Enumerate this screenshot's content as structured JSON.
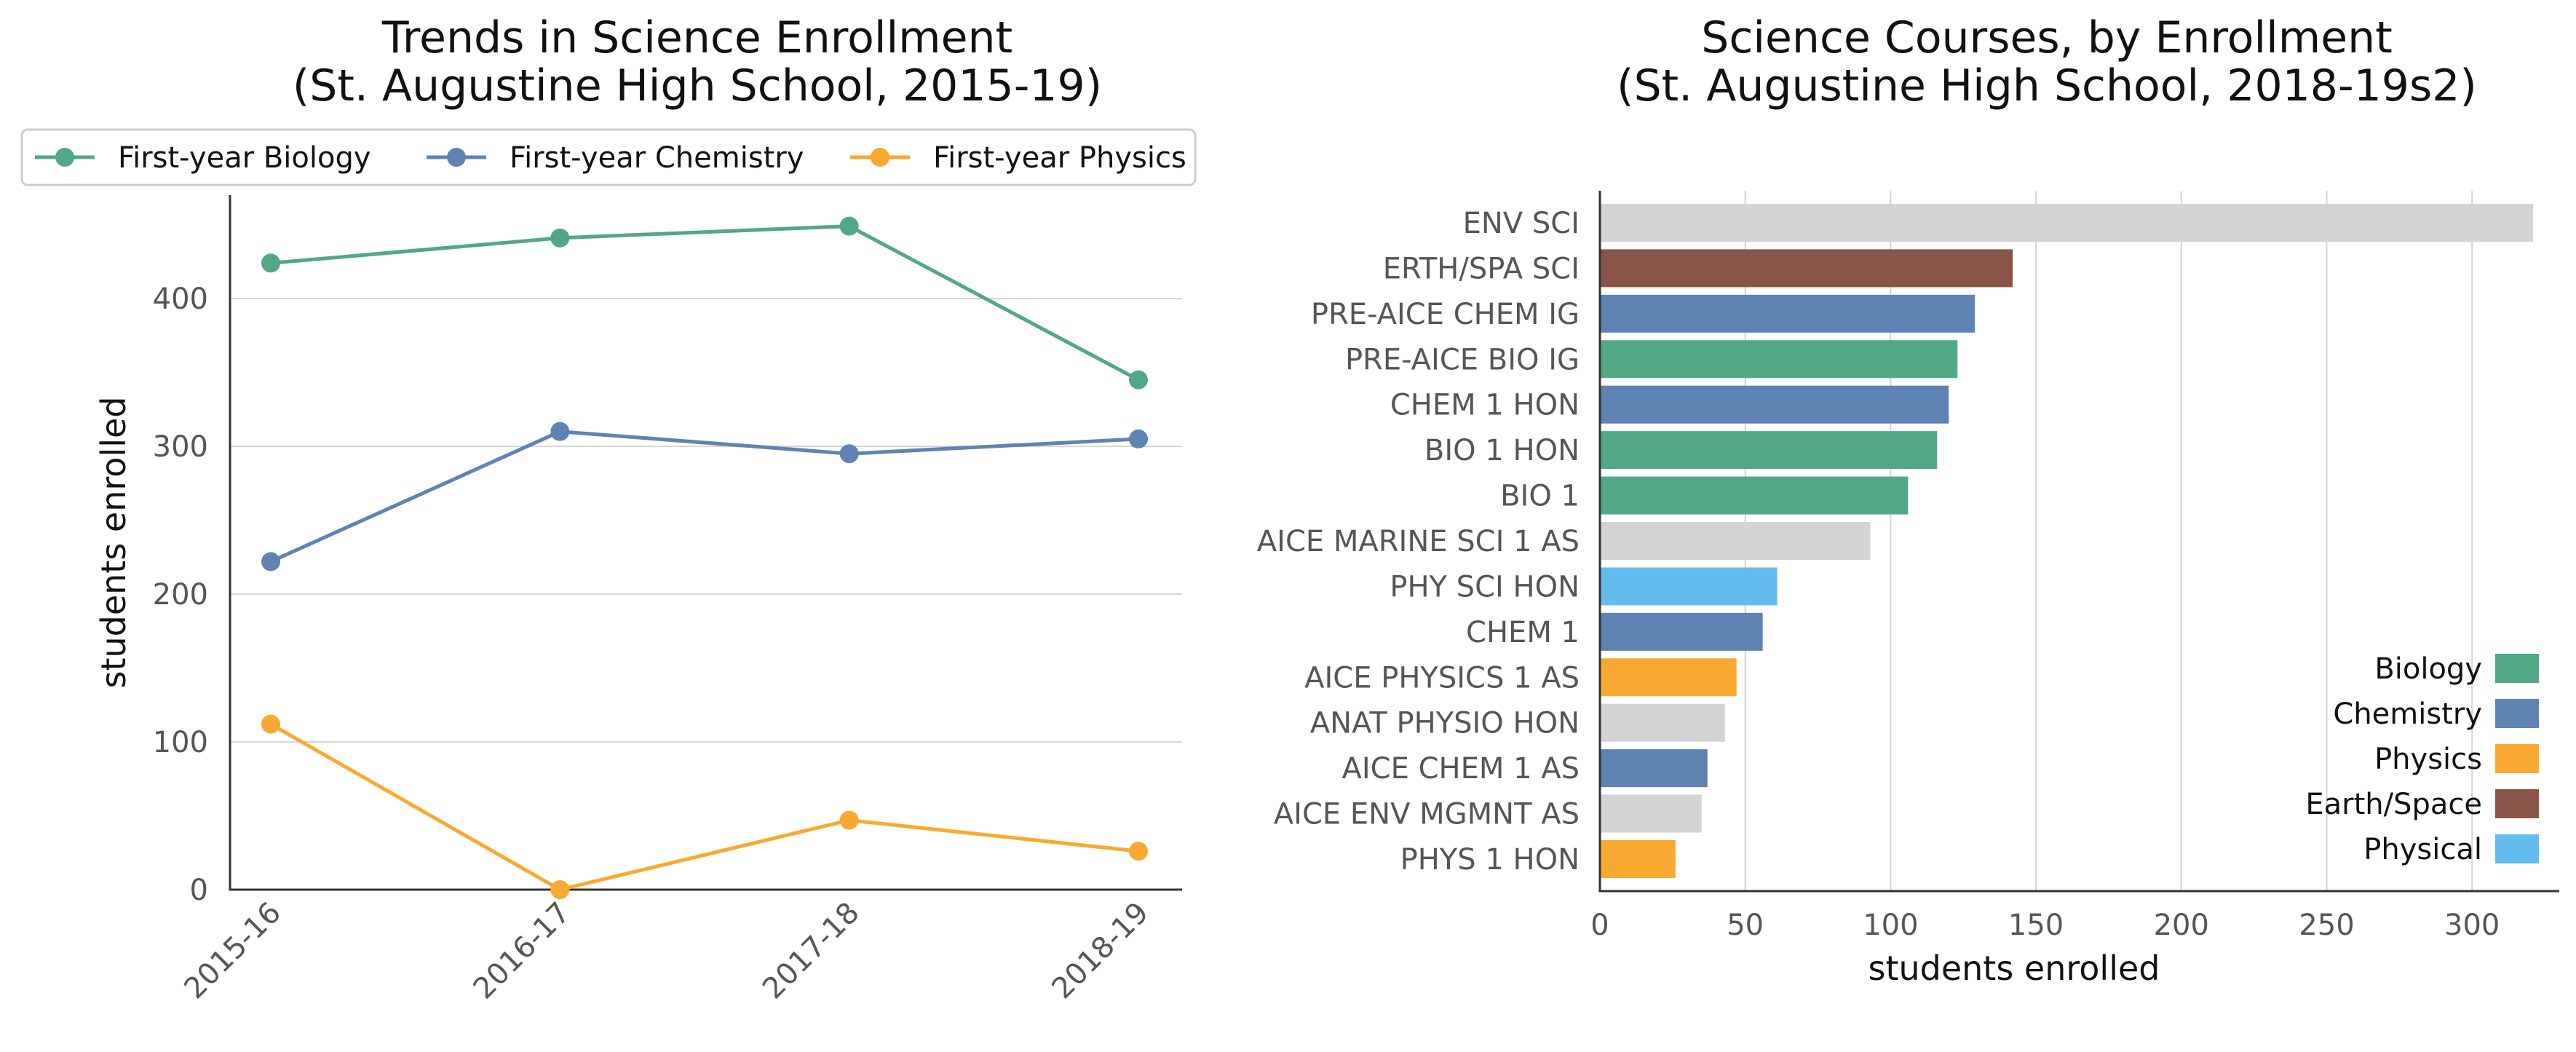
{
  "chart_data": [
    {
      "type": "line",
      "title": "Trends in Science Enrollment",
      "subtitle": "(St. Augustine High School, 2015-19)",
      "xlabel": "",
      "ylabel": "students enrolled",
      "categories": [
        "2015-16",
        "2016-17",
        "2017-18",
        "2018-19"
      ],
      "ylim": [
        0,
        470
      ],
      "yticks": [
        0,
        100,
        200,
        300,
        400
      ],
      "grid": true,
      "legend_placement": "top",
      "series": [
        {
          "name": "First-year Biology",
          "color": "#52a884",
          "values": [
            424,
            441,
            449,
            345
          ]
        },
        {
          "name": "First-year Chemistry",
          "color": "#5f83b2",
          "values": [
            222,
            310,
            295,
            305
          ]
        },
        {
          "name": "First-year Physics",
          "color": "#f9a932",
          "values": [
            112,
            0,
            47,
            26
          ]
        }
      ]
    },
    {
      "type": "bar",
      "orientation": "horizontal",
      "title": "Science Courses, by Enrollment",
      "subtitle": "(St. Augustine High School, 2018-19s2)",
      "xlabel": "students enrolled",
      "ylabel": "",
      "xlim": [
        0,
        330
      ],
      "xticks": [
        0,
        50,
        100,
        150,
        200,
        250,
        300
      ],
      "grid": true,
      "legend_placement": "bottom-right",
      "legend": [
        {
          "name": "Biology",
          "color": "#52a884"
        },
        {
          "name": "Chemistry",
          "color": "#5f83b2"
        },
        {
          "name": "Physics",
          "color": "#f9a932"
        },
        {
          "name": "Earth/Space",
          "color": "#8a5549"
        },
        {
          "name": "Physical",
          "color": "#62bded"
        }
      ],
      "other_color": "#d3d3d3",
      "bars": [
        {
          "label": "ENV SCI",
          "value": 321,
          "color": "#d3d3d3"
        },
        {
          "label": "ERTH/SPA SCI",
          "value": 142,
          "color": "#8a5549"
        },
        {
          "label": "PRE-AICE CHEM IG",
          "value": 129,
          "color": "#5f83b2"
        },
        {
          "label": "PRE-AICE BIO IG",
          "value": 123,
          "color": "#52a884"
        },
        {
          "label": "CHEM 1 HON",
          "value": 120,
          "color": "#5f83b2"
        },
        {
          "label": "BIO 1 HON",
          "value": 116,
          "color": "#52a884"
        },
        {
          "label": "BIO 1",
          "value": 106,
          "color": "#52a884"
        },
        {
          "label": "AICE MARINE SCI 1 AS",
          "value": 93,
          "color": "#d3d3d3"
        },
        {
          "label": "PHY SCI HON",
          "value": 61,
          "color": "#62bded"
        },
        {
          "label": "CHEM 1",
          "value": 56,
          "color": "#5f83b2"
        },
        {
          "label": "AICE PHYSICS 1 AS",
          "value": 47,
          "color": "#f9a932"
        },
        {
          "label": "ANAT PHYSIO HON",
          "value": 43,
          "color": "#d3d3d3"
        },
        {
          "label": "AICE CHEM 1 AS",
          "value": 37,
          "color": "#5f83b2"
        },
        {
          "label": "AICE ENV MGMNT AS",
          "value": 35,
          "color": "#d3d3d3"
        },
        {
          "label": "PHYS 1 HON",
          "value": 26,
          "color": "#f9a932"
        }
      ]
    }
  ]
}
